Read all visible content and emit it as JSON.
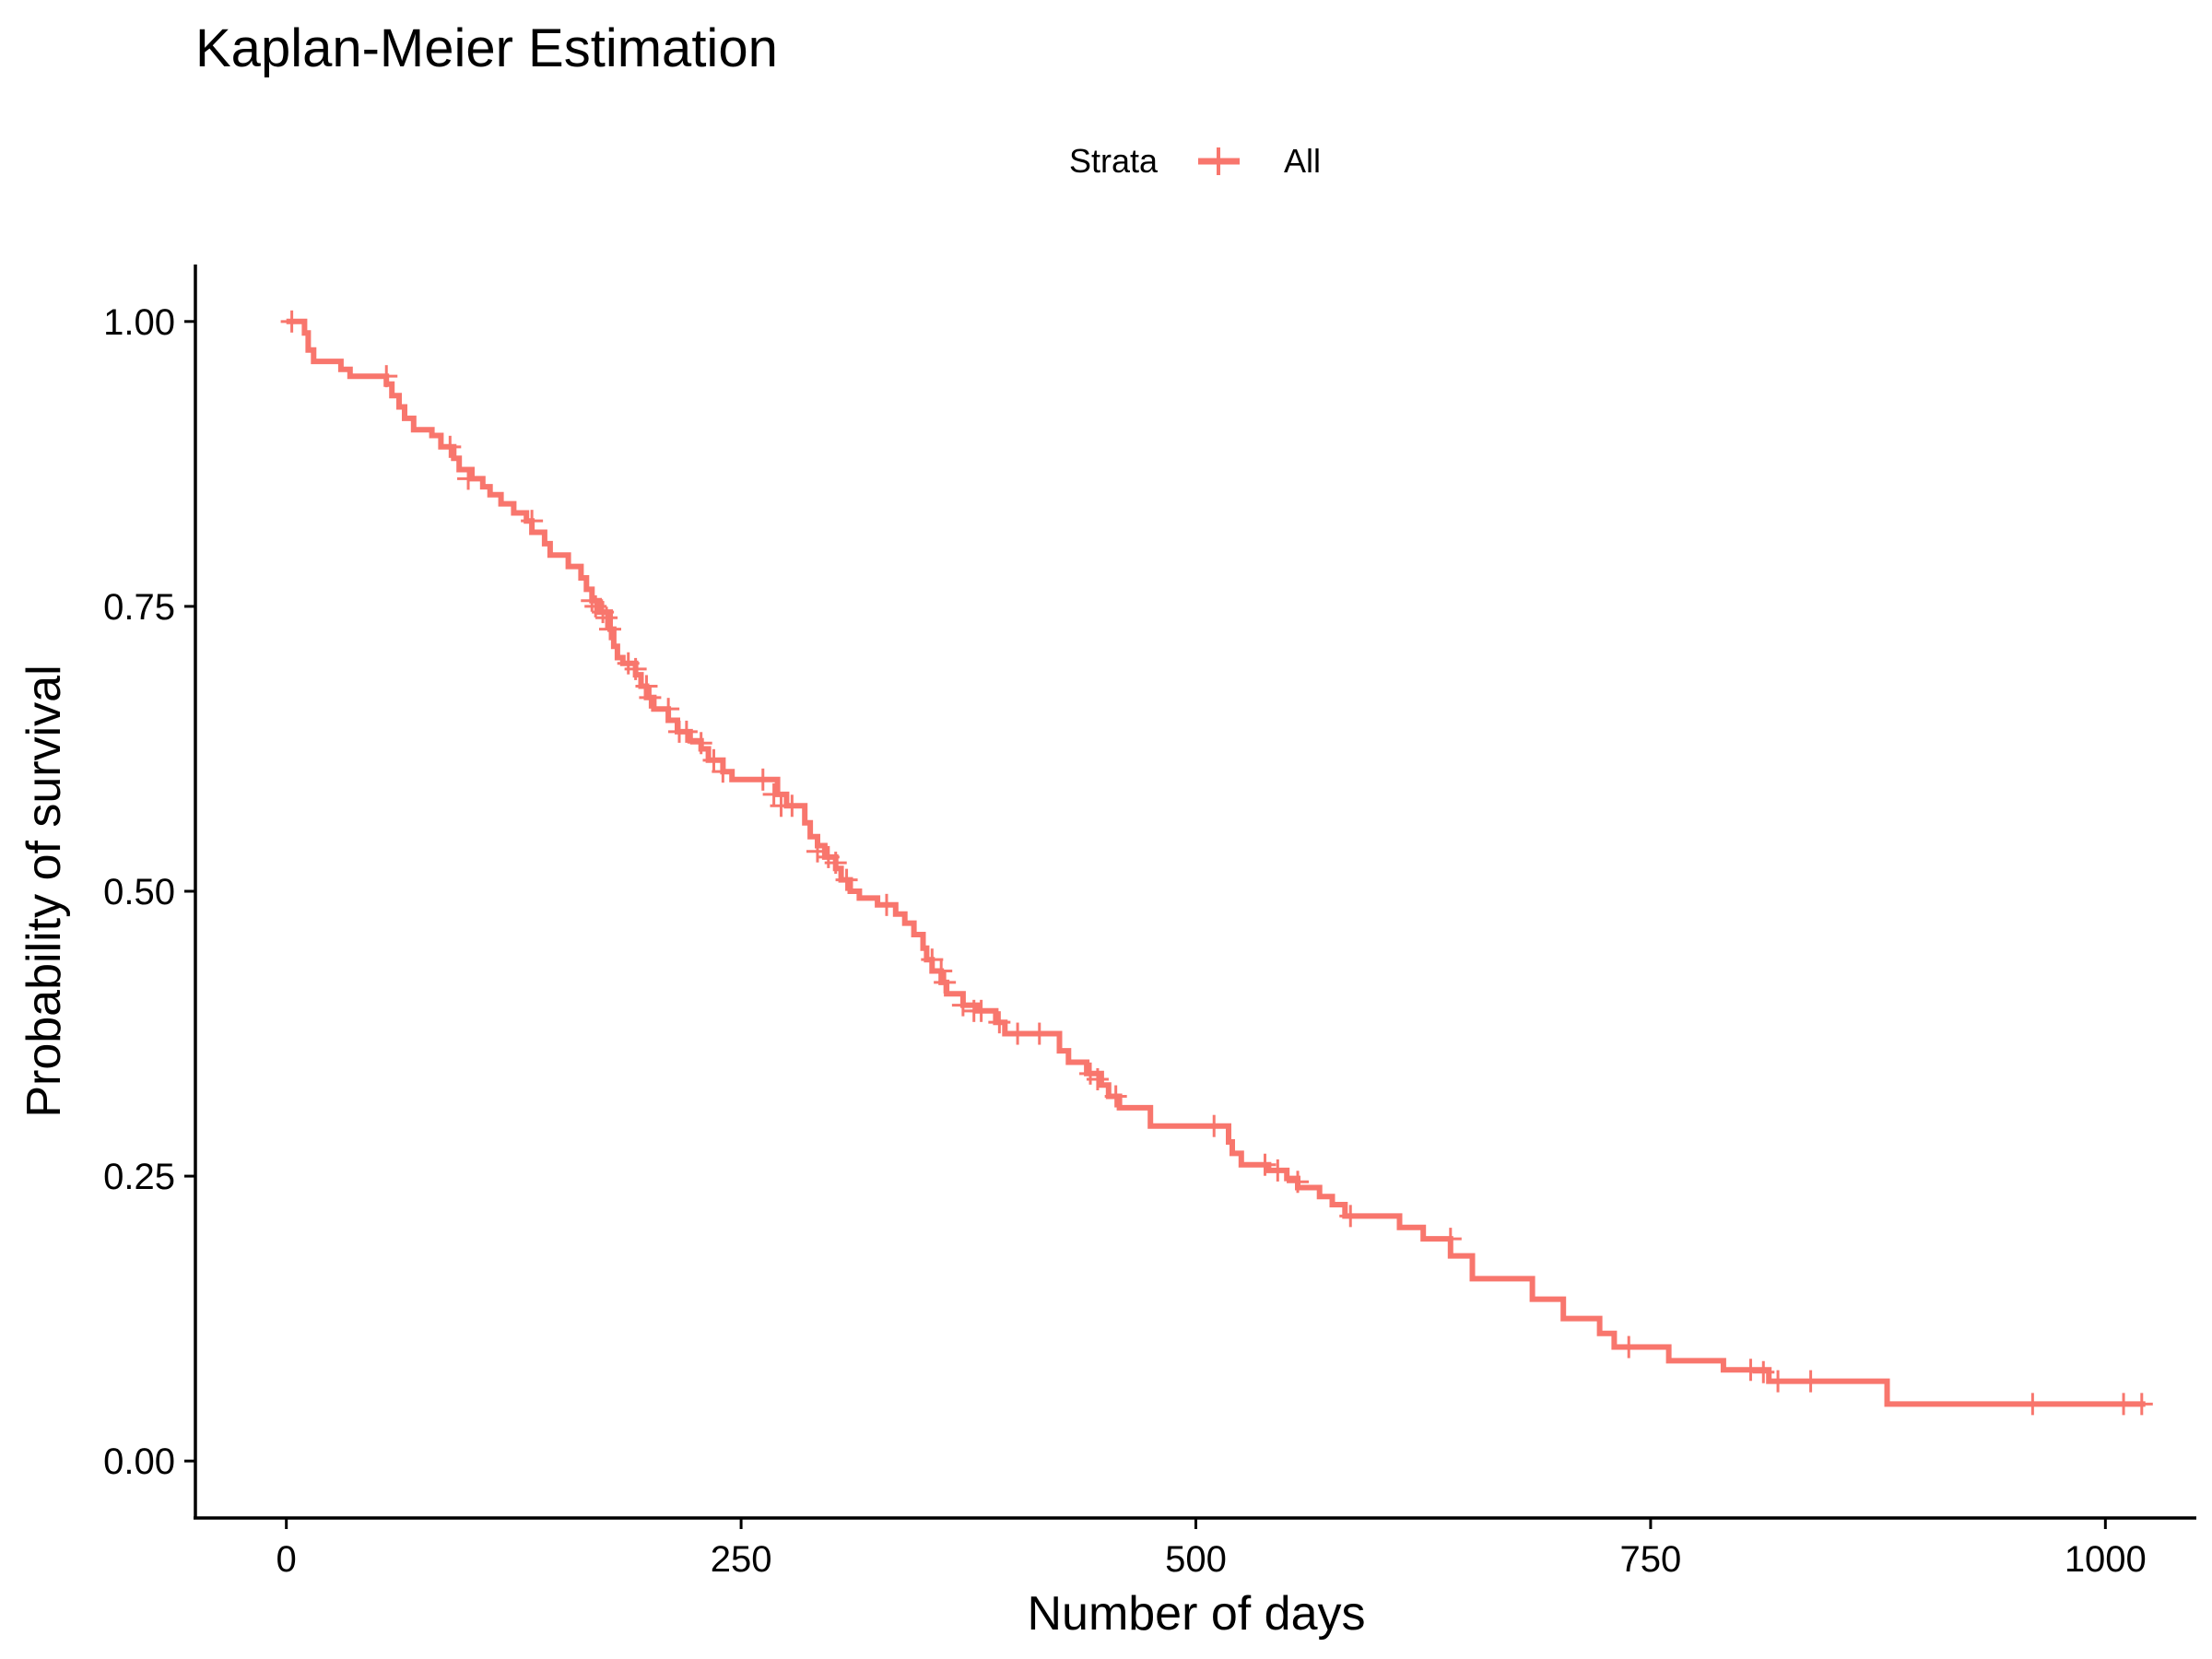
{
  "chart_data": {
    "type": "line",
    "title": "Kaplan-Meier Estimation",
    "xlabel": "Number of days",
    "ylabel": "Probability of survival",
    "xlim": [
      -50,
      1050
    ],
    "ylim": [
      -0.05,
      1.05
    ],
    "x_ticks": [
      0,
      250,
      500,
      750,
      1000
    ],
    "x_tick_labels": [
      "0",
      "250",
      "500",
      "750",
      "1000"
    ],
    "y_ticks": [
      0,
      0.25,
      0.5,
      0.75,
      1.0
    ],
    "y_tick_labels": [
      "0.00",
      "0.25",
      "0.50",
      "0.75",
      "1.00"
    ],
    "grid": false,
    "legend": {
      "title": "Strata",
      "position": "top",
      "entries": [
        "All"
      ]
    },
    "series": [
      {
        "name": "All",
        "color": "#F8766D",
        "step": true,
        "points": [
          [
            0,
            1.0
          ],
          [
            10,
            0.99
          ],
          [
            12,
            0.975
          ],
          [
            15,
            0.965
          ],
          [
            30,
            0.958
          ],
          [
            35,
            0.952
          ],
          [
            55,
            0.945
          ],
          [
            58,
            0.935
          ],
          [
            62,
            0.925
          ],
          [
            65,
            0.915
          ],
          [
            70,
            0.905
          ],
          [
            80,
            0.9
          ],
          [
            85,
            0.89
          ],
          [
            92,
            0.88
          ],
          [
            95,
            0.87
          ],
          [
            102,
            0.862
          ],
          [
            108,
            0.855
          ],
          [
            112,
            0.848
          ],
          [
            118,
            0.84
          ],
          [
            125,
            0.832
          ],
          [
            132,
            0.825
          ],
          [
            135,
            0.815
          ],
          [
            142,
            0.805
          ],
          [
            145,
            0.795
          ],
          [
            155,
            0.785
          ],
          [
            162,
            0.775
          ],
          [
            165,
            0.765
          ],
          [
            168,
            0.755
          ],
          [
            172,
            0.745
          ],
          [
            178,
            0.73
          ],
          [
            180,
            0.715
          ],
          [
            182,
            0.705
          ],
          [
            185,
            0.7
          ],
          [
            192,
            0.69
          ],
          [
            195,
            0.68
          ],
          [
            198,
            0.67
          ],
          [
            202,
            0.66
          ],
          [
            210,
            0.65
          ],
          [
            215,
            0.64
          ],
          [
            222,
            0.632
          ],
          [
            228,
            0.625
          ],
          [
            232,
            0.615
          ],
          [
            240,
            0.605
          ],
          [
            245,
            0.598
          ],
          [
            270,
            0.585
          ],
          [
            275,
            0.575
          ],
          [
            285,
            0.56
          ],
          [
            288,
            0.548
          ],
          [
            292,
            0.54
          ],
          [
            296,
            0.53
          ],
          [
            302,
            0.52
          ],
          [
            305,
            0.51
          ],
          [
            310,
            0.5
          ],
          [
            315,
            0.494
          ],
          [
            325,
            0.488
          ],
          [
            335,
            0.48
          ],
          [
            340,
            0.472
          ],
          [
            345,
            0.462
          ],
          [
            350,
            0.45
          ],
          [
            352,
            0.44
          ],
          [
            355,
            0.43
          ],
          [
            360,
            0.42
          ],
          [
            363,
            0.41
          ],
          [
            372,
            0.4
          ],
          [
            380,
            0.395
          ],
          [
            390,
            0.385
          ],
          [
            395,
            0.375
          ],
          [
            425,
            0.36
          ],
          [
            430,
            0.35
          ],
          [
            440,
            0.34
          ],
          [
            448,
            0.33
          ],
          [
            452,
            0.32
          ],
          [
            458,
            0.31
          ],
          [
            475,
            0.294
          ],
          [
            518,
            0.28
          ],
          [
            520,
            0.27
          ],
          [
            525,
            0.26
          ],
          [
            540,
            0.255
          ],
          [
            550,
            0.248
          ],
          [
            556,
            0.24
          ],
          [
            568,
            0.232
          ],
          [
            575,
            0.225
          ],
          [
            582,
            0.215
          ],
          [
            612,
            0.205
          ],
          [
            625,
            0.195
          ],
          [
            640,
            0.18
          ],
          [
            652,
            0.16
          ],
          [
            685,
            0.142
          ],
          [
            702,
            0.125
          ],
          [
            722,
            0.112
          ],
          [
            730,
            0.1
          ],
          [
            760,
            0.088
          ],
          [
            790,
            0.08
          ],
          [
            815,
            0.07
          ],
          [
            880,
            0.05
          ],
          [
            1022,
            0.05
          ]
        ],
        "censor_marks": [
          [
            3,
            1.0
          ],
          [
            55,
            0.952
          ],
          [
            90,
            0.89
          ],
          [
            100,
            0.862
          ],
          [
            135,
            0.825
          ],
          [
            168,
            0.755
          ],
          [
            170,
            0.75
          ],
          [
            174,
            0.745
          ],
          [
            176,
            0.74
          ],
          [
            178,
            0.73
          ],
          [
            188,
            0.7
          ],
          [
            192,
            0.695
          ],
          [
            198,
            0.68
          ],
          [
            200,
            0.67
          ],
          [
            210,
            0.66
          ],
          [
            216,
            0.64
          ],
          [
            220,
            0.64
          ],
          [
            228,
            0.63
          ],
          [
            235,
            0.615
          ],
          [
            240,
            0.605
          ],
          [
            262,
            0.598
          ],
          [
            268,
            0.585
          ],
          [
            272,
            0.575
          ],
          [
            278,
            0.575
          ],
          [
            292,
            0.535
          ],
          [
            298,
            0.53
          ],
          [
            302,
            0.525
          ],
          [
            308,
            0.51
          ],
          [
            330,
            0.488
          ],
          [
            355,
            0.44
          ],
          [
            360,
            0.43
          ],
          [
            362,
            0.42
          ],
          [
            372,
            0.4
          ],
          [
            378,
            0.395
          ],
          [
            382,
            0.395
          ],
          [
            392,
            0.385
          ],
          [
            402,
            0.375
          ],
          [
            414,
            0.375
          ],
          [
            442,
            0.34
          ],
          [
            446,
            0.335
          ],
          [
            456,
            0.32
          ],
          [
            510,
            0.294
          ],
          [
            538,
            0.26
          ],
          [
            545,
            0.255
          ],
          [
            556,
            0.245
          ],
          [
            585,
            0.215
          ],
          [
            640,
            0.195
          ],
          [
            738,
            0.1
          ],
          [
            805,
            0.08
          ],
          [
            812,
            0.078
          ],
          [
            820,
            0.07
          ],
          [
            838,
            0.07
          ],
          [
            960,
            0.05
          ],
          [
            1010,
            0.05
          ],
          [
            1020,
            0.05
          ]
        ]
      }
    ]
  }
}
